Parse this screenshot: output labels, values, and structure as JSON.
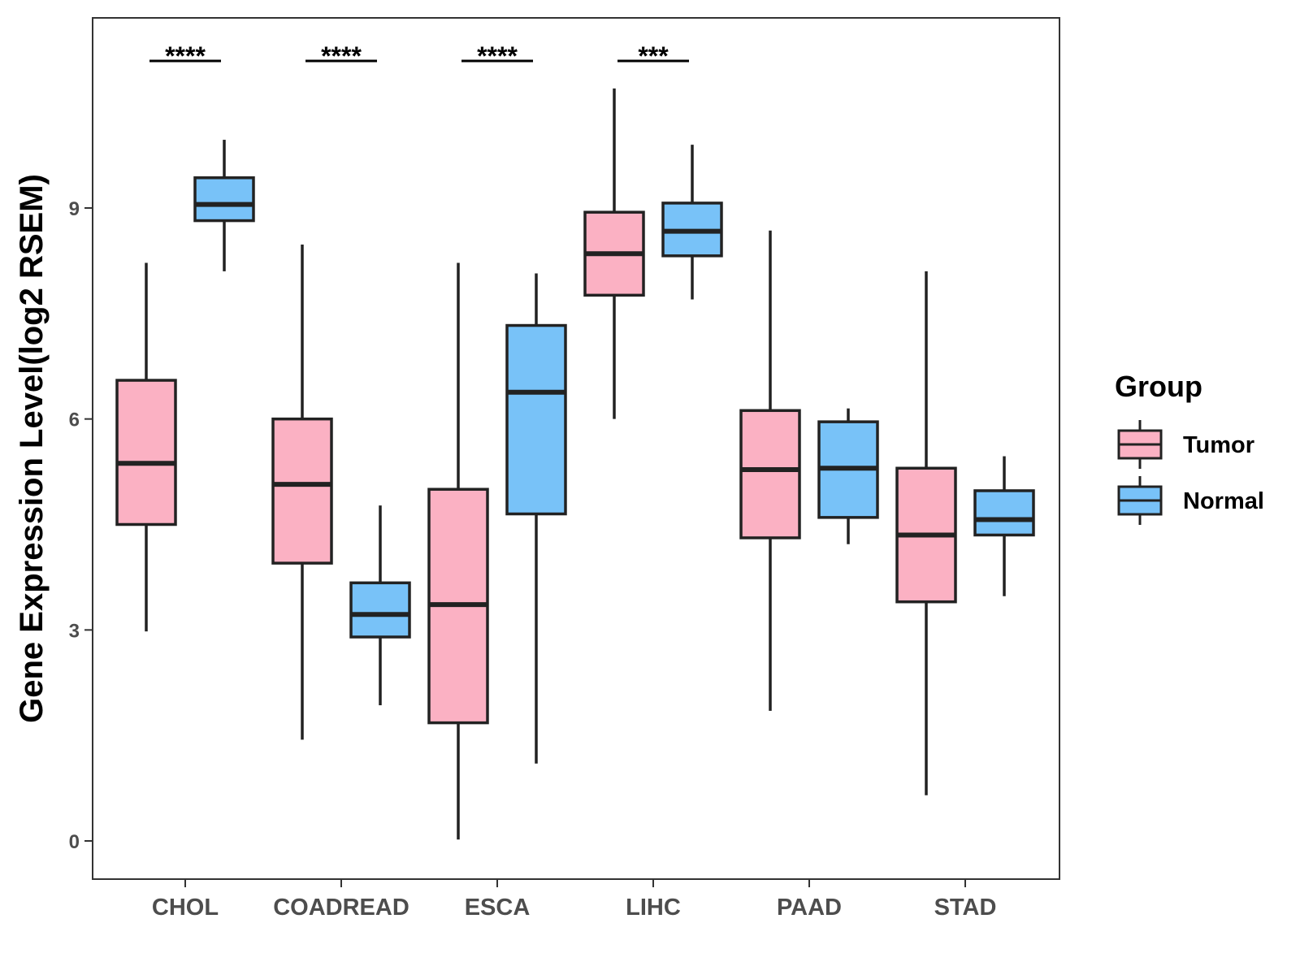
{
  "chart_data": {
    "type": "boxplot",
    "title": "",
    "xlabel": "",
    "ylabel": "Gene Expression Level(log2 RSEM)",
    "ylim": [
      -0.55,
      11.7
    ],
    "yticks": [
      0,
      3,
      6,
      9
    ],
    "grid": false,
    "categories": [
      "CHOL",
      "COADREAD",
      "ESCA",
      "LIHC",
      "PAAD",
      "STAD"
    ],
    "legend": {
      "title": "Group",
      "position": "right",
      "entries": [
        {
          "name": "Tumor",
          "color": "#fbb1c3"
        },
        {
          "name": "Normal",
          "color": "#78c2f8"
        }
      ]
    },
    "series": [
      {
        "name": "Tumor",
        "color": "#fbb1c3",
        "boxes": [
          {
            "min": 2.98,
            "q1": 4.5,
            "median": 5.37,
            "q3": 6.55,
            "max": 8.22
          },
          {
            "min": 1.44,
            "q1": 3.95,
            "median": 5.07,
            "q3": 6.0,
            "max": 8.48
          },
          {
            "min": 0.02,
            "q1": 1.68,
            "median": 3.36,
            "q3": 5.0,
            "max": 8.22
          },
          {
            "min": 6.0,
            "q1": 7.76,
            "median": 8.35,
            "q3": 8.94,
            "max": 10.7
          },
          {
            "min": 1.85,
            "q1": 4.31,
            "median": 5.28,
            "q3": 6.12,
            "max": 8.68
          },
          {
            "min": 0.65,
            "q1": 3.4,
            "median": 4.35,
            "q3": 5.3,
            "max": 8.1
          }
        ]
      },
      {
        "name": "Normal",
        "color": "#78c2f8",
        "boxes": [
          {
            "min": 8.1,
            "q1": 8.82,
            "median": 9.05,
            "q3": 9.43,
            "max": 9.97
          },
          {
            "min": 1.93,
            "q1": 2.9,
            "median": 3.22,
            "q3": 3.67,
            "max": 4.77
          },
          {
            "min": 1.1,
            "q1": 4.65,
            "median": 6.38,
            "q3": 7.33,
            "max": 8.07
          },
          {
            "min": 7.7,
            "q1": 8.32,
            "median": 8.67,
            "q3": 9.07,
            "max": 9.9
          },
          {
            "min": 4.22,
            "q1": 4.6,
            "median": 5.3,
            "q3": 5.96,
            "max": 6.15
          },
          {
            "min": 3.48,
            "q1": 4.35,
            "median": 4.57,
            "q3": 4.98,
            "max": 5.47
          }
        ]
      }
    ],
    "significance": [
      {
        "category": "CHOL",
        "label": "****"
      },
      {
        "category": "COADREAD",
        "label": "****"
      },
      {
        "category": "ESCA",
        "label": "****"
      },
      {
        "category": "LIHC",
        "label": "***"
      }
    ]
  }
}
